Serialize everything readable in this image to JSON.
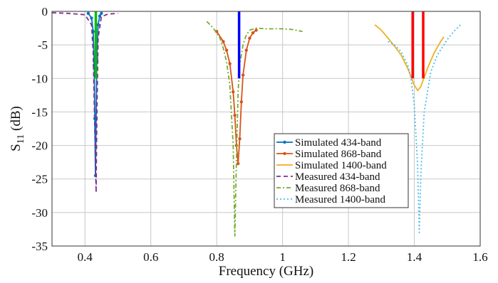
{
  "chart_data": {
    "type": "line",
    "xlabel": "Frequency (GHz)",
    "ylabel_main": "S",
    "ylabel_sub": "11",
    "ylabel_unit": " (dB)",
    "xlim": [
      0.3,
      1.6
    ],
    "ylim": [
      -35,
      0
    ],
    "xticks": [
      0.4,
      0.6,
      0.8,
      1,
      1.2,
      1.4,
      1.6
    ],
    "xtick_labels": [
      "0.4",
      "0.6",
      "0.8",
      "1",
      "1.2",
      "1.4",
      "1.6"
    ],
    "yticks": [
      0,
      -5,
      -10,
      -15,
      -20,
      -25,
      -30,
      -35
    ],
    "ytick_labels": [
      "0",
      "-5",
      "-10",
      "-15",
      "-20",
      "-25",
      "-30",
      "-35"
    ],
    "grid": true,
    "legend_position": "center-right",
    "series": [
      {
        "name": "Simulated 434-band",
        "color": "#0072BD",
        "style": "solid",
        "marker": "dot",
        "x": [
          0.41,
          0.42,
          0.425,
          0.428,
          0.43,
          0.432,
          0.434,
          0.436,
          0.44,
          0.445,
          0.45
        ],
        "y": [
          -0.3,
          -1.0,
          -3.0,
          -8.0,
          -16.0,
          -24.5,
          -16.0,
          -7.0,
          -2.0,
          -0.7,
          -0.3
        ]
      },
      {
        "name": "Simulated 868-band",
        "color": "#D95319",
        "style": "solid",
        "marker": "dot",
        "x": [
          0.8,
          0.82,
          0.83,
          0.84,
          0.85,
          0.855,
          0.86,
          0.865,
          0.87,
          0.875,
          0.88,
          0.89,
          0.9,
          0.91,
          0.92
        ],
        "y": [
          -3.0,
          -4.5,
          -5.8,
          -7.8,
          -12.0,
          -15.5,
          -20.0,
          -22.7,
          -19.0,
          -13.5,
          -9.5,
          -5.8,
          -4.0,
          -3.2,
          -2.8
        ]
      },
      {
        "name": "Simulated 1400-band",
        "color": "#EDB120",
        "style": "solid",
        "marker": "none",
        "x": [
          1.28,
          1.3,
          1.32,
          1.34,
          1.36,
          1.38,
          1.4,
          1.41,
          1.42,
          1.44,
          1.46,
          1.48,
          1.49
        ],
        "y": [
          -2.0,
          -2.8,
          -4.0,
          -5.2,
          -6.5,
          -8.5,
          -11.0,
          -11.8,
          -11.2,
          -8.5,
          -6.2,
          -4.5,
          -3.8
        ]
      },
      {
        "name": "Measured 434-band",
        "color": "#7E2F8E",
        "style": "dash",
        "marker": "none",
        "x": [
          0.3,
          0.35,
          0.4,
          0.42,
          0.425,
          0.43,
          0.434,
          0.436,
          0.44,
          0.45,
          0.47,
          0.5
        ],
        "y": [
          -0.2,
          -0.3,
          -0.5,
          -2.0,
          -6.0,
          -18.0,
          -27.0,
          -16.0,
          -4.0,
          -0.8,
          -0.4,
          -0.3
        ]
      },
      {
        "name": "Measured 868-band",
        "color": "#77AC30",
        "style": "dashdot",
        "marker": "none",
        "x": [
          0.77,
          0.79,
          0.81,
          0.82,
          0.83,
          0.84,
          0.85,
          0.855,
          0.86,
          0.865,
          0.87,
          0.88,
          0.89,
          0.9,
          0.92,
          0.95,
          1.0,
          1.03,
          1.06
        ],
        "y": [
          -1.5,
          -2.5,
          -4.0,
          -5.5,
          -7.5,
          -11.0,
          -20.0,
          -33.5,
          -22.0,
          -12.0,
          -8.0,
          -5.0,
          -3.5,
          -2.8,
          -2.5,
          -2.6,
          -2.6,
          -2.7,
          -3.0
        ]
      },
      {
        "name": "Measured 1400-band",
        "color": "#4DBEEE",
        "style": "dot",
        "marker": "none",
        "x": [
          1.32,
          1.34,
          1.36,
          1.38,
          1.39,
          1.4,
          1.41,
          1.415,
          1.42,
          1.43,
          1.45,
          1.47,
          1.5,
          1.52,
          1.54
        ],
        "y": [
          -4.5,
          -5.0,
          -6.0,
          -8.0,
          -10.0,
          -14.0,
          -23.0,
          -33.0,
          -24.0,
          -15.0,
          -9.0,
          -6.5,
          -4.2,
          -3.0,
          -2.0
        ]
      }
    ],
    "markers": [
      {
        "color": "#00C000",
        "x": 0.433,
        "y_top": 0,
        "y_bottom": -10
      },
      {
        "color": "#0000FF",
        "x": 0.868,
        "y_top": 0,
        "y_bottom": -10
      },
      {
        "color": "#FF0000",
        "x": 1.395,
        "y_top": 0,
        "y_bottom": -10
      },
      {
        "color": "#FF0000",
        "x": 1.427,
        "y_top": 0,
        "y_bottom": -10
      }
    ]
  }
}
